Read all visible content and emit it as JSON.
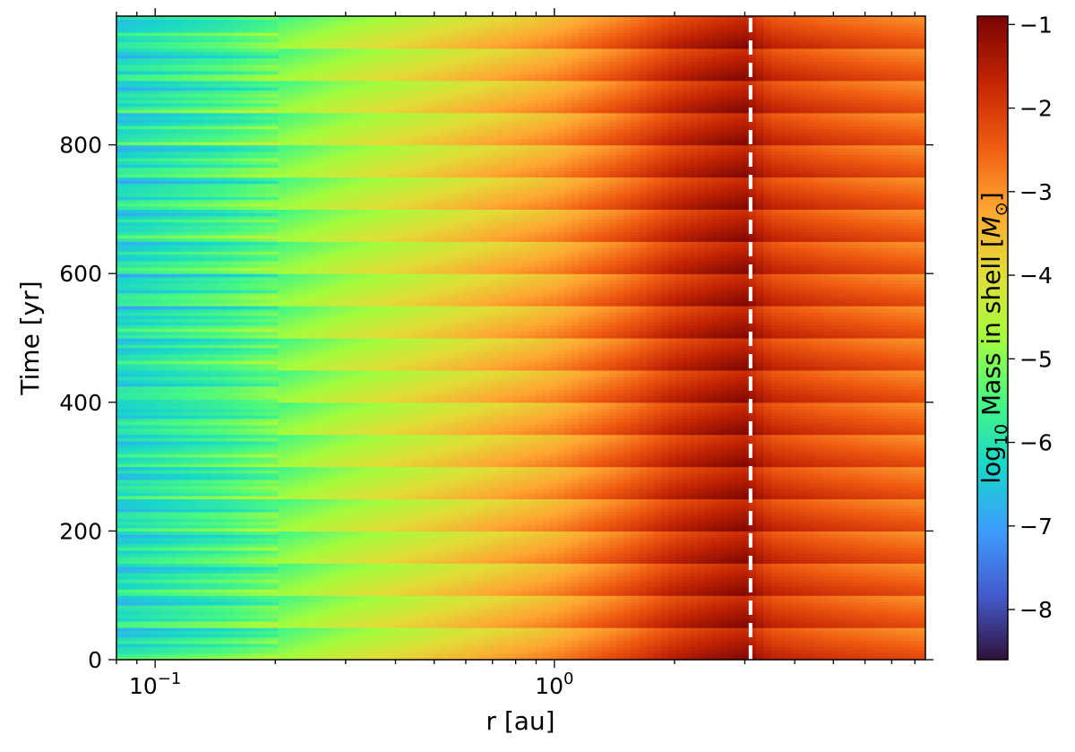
{
  "chart_data": {
    "type": "heatmap",
    "title": "",
    "xlabel": "r [au]",
    "ylabel": "Time [yr]",
    "xscale": "log",
    "xlim": [
      0.08,
      8.5
    ],
    "ylim": [
      0,
      1000
    ],
    "x_ticks": [
      {
        "value": 0.1,
        "base": "10",
        "exp": "−1"
      },
      {
        "value": 1,
        "base": "10",
        "exp": "0"
      }
    ],
    "y_ticks": [
      {
        "value": 0,
        "label": "0"
      },
      {
        "value": 200,
        "label": "200"
      },
      {
        "value": 400,
        "label": "400"
      },
      {
        "value": 600,
        "label": "600"
      },
      {
        "value": 800,
        "label": "800"
      }
    ],
    "colorbar": {
      "label_prefix": "log",
      "label_sub": "10",
      "label_main": " Mass in shell [",
      "label_unit": "M",
      "label_unit_sub": "⊙",
      "label_suffix": "]",
      "range": [
        -8.6,
        -0.9
      ],
      "colormap": "turbo",
      "ticks": [
        {
          "value": -1,
          "label": "−1"
        },
        {
          "value": -2,
          "label": "−2"
        },
        {
          "value": -3,
          "label": "−3"
        },
        {
          "value": -4,
          "label": "−4"
        },
        {
          "value": -5,
          "label": "−5"
        },
        {
          "value": -6,
          "label": "−6"
        },
        {
          "value": -7,
          "label": "−7"
        },
        {
          "value": -8,
          "label": "−8"
        }
      ]
    },
    "reference_line": {
      "orientation": "vertical",
      "x": 3.1,
      "color": "#ffffff",
      "style": "dashed"
    },
    "mass_profile": {
      "r": [
        0.08,
        0.1,
        0.15,
        0.2,
        0.3,
        0.5,
        0.7,
        1.0,
        1.5,
        2.0,
        2.5,
        3.0,
        3.5,
        5.0,
        7.0,
        8.5
      ],
      "log_mass": [
        -6.2,
        -6.0,
        -5.6,
        -5.2,
        -4.6,
        -4.0,
        -3.6,
        -3.2,
        -2.5,
        -1.9,
        -1.6,
        -1.4,
        -2.0,
        -2.3,
        -2.5,
        -2.6
      ]
    },
    "outburst_period_yr": 50,
    "grid": false,
    "legend": "none"
  }
}
